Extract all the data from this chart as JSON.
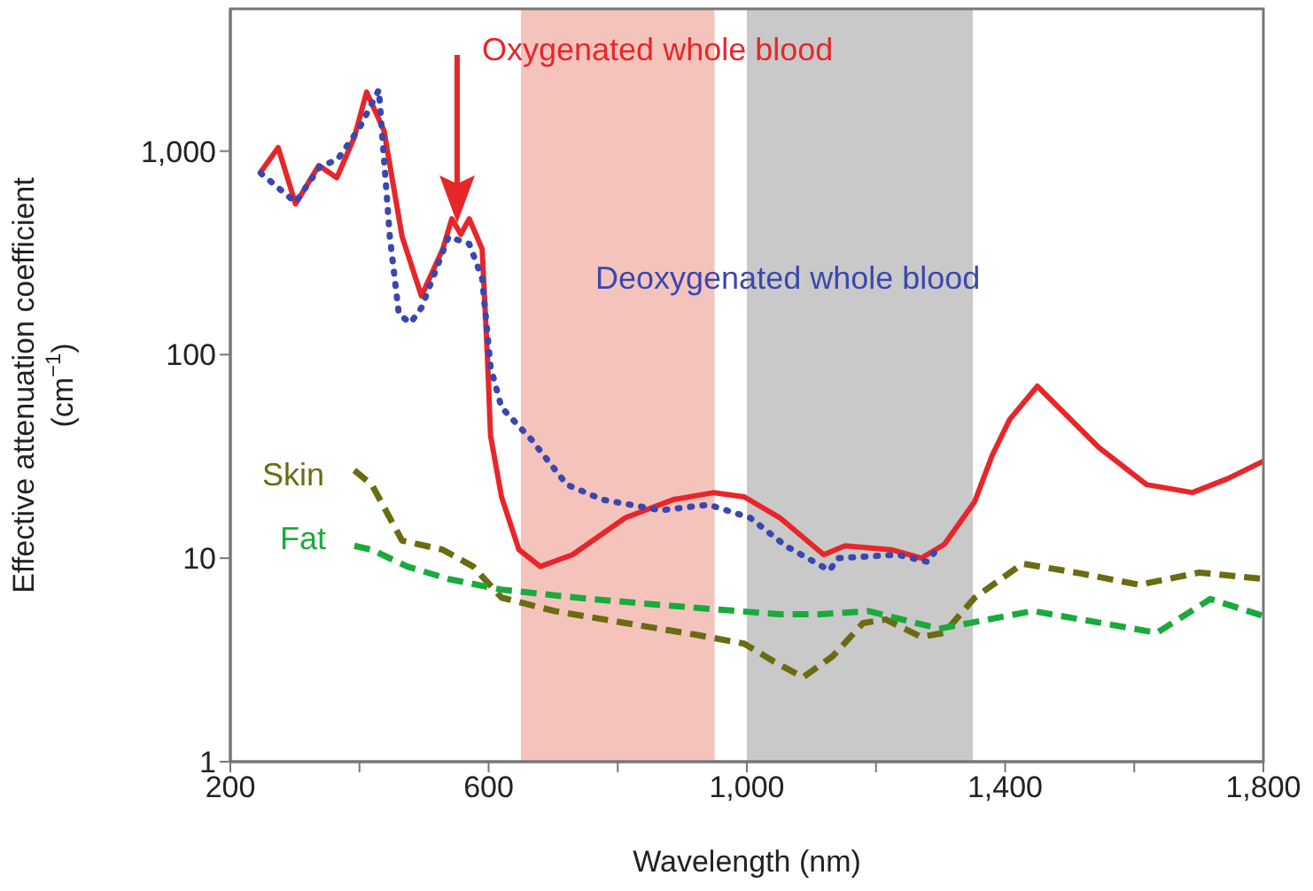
{
  "chart_data": {
    "type": "line",
    "xlabel": "Wavelength (nm)",
    "ylabel": "Effective attenuation coefficient\n(cm$^{−1}$)",
    "log": "y",
    "grid": false,
    "legend": false,
    "xlim": [
      200,
      1800
    ],
    "xticks": [
      200,
      {
        "value": 400,
        "label": null
      },
      600,
      {
        "value": 800,
        "label": null
      },
      {
        "value": 1000,
        "label": "1,000"
      },
      {
        "value": 1200,
        "label": null
      },
      {
        "value": 1400,
        "label": "1,400"
      },
      {
        "value": 1600,
        "label": null
      },
      {
        "value": 1800,
        "label": "1,800"
      }
    ],
    "ylim": [
      1,
      5000
    ],
    "yticks": [
      1,
      10,
      100,
      {
        "value": 1000,
        "label": "1,000"
      }
    ],
    "bands": [
      {
        "axis": "x",
        "from": 650,
        "to": 950,
        "color": "#f4c4bc"
      },
      {
        "axis": "x",
        "from": 1000,
        "to": 1350,
        "color": "#c9c9c9"
      }
    ],
    "series": [
      {
        "name": "Oxygenated whole blood",
        "color": "#e8262a",
        "line_style": "solid",
        "x": [
          247,
          274,
          301,
          337,
          365,
          392,
          411,
          438,
          466,
          496,
          529,
          543,
          557,
          570,
          590,
          598,
          603,
          620,
          647,
          680,
          730,
          812,
          886,
          949,
          996,
          1051,
          1119,
          1152,
          1224,
          1270,
          1306,
          1353,
          1380,
          1407,
          1450,
          1545,
          1619,
          1690,
          1745,
          1800
        ],
        "values": [
          790,
          1040,
          550,
          850,
          740,
          1170,
          1950,
          1260,
          380,
          194,
          330,
          465,
          390,
          465,
          330,
          100,
          40,
          20,
          11,
          9.1,
          10.4,
          15.8,
          19.4,
          21,
          20,
          15.8,
          10.4,
          11.5,
          11,
          10,
          11.7,
          19,
          32,
          48,
          70,
          35,
          23,
          21,
          24.6,
          30
        ]
      },
      {
        "name": "Deoxygenated whole blood",
        "color": "#3a47b0",
        "line_style": "dotted",
        "x": [
          247,
          301,
          340,
          365,
          400,
          430,
          447,
          461,
          479,
          496,
          538,
          570,
          590,
          603,
          620,
          667,
          721,
          776,
          867,
          941,
          1005,
          1060,
          1128,
          1141,
          1233,
          1279,
          1290
        ],
        "values": [
          780,
          560,
          850,
          900,
          1300,
          2000,
          380,
          158,
          143,
          170,
          380,
          350,
          237,
          87,
          55,
          38,
          23,
          19.4,
          17.2,
          18.3,
          15.8,
          11.5,
          8.7,
          10,
          10.4,
          9.6,
          10.6
        ]
      },
      {
        "name": "Skin",
        "color": "#6b6b12",
        "line_style": "dashed",
        "x": [
          392,
          419,
          466,
          529,
          576,
          620,
          702,
          812,
          922,
          996,
          1042,
          1087,
          1133,
          1180,
          1215,
          1270,
          1306,
          1353,
          1427,
          1509,
          1608,
          1701,
          1800
        ],
        "values": [
          27,
          23,
          12.2,
          11,
          9.1,
          6.4,
          5.5,
          4.8,
          4.2,
          3.8,
          3.1,
          2.6,
          3.3,
          4.8,
          5,
          4.1,
          4.3,
          6.4,
          9.4,
          8.5,
          7.4,
          8.5,
          7.9
        ]
      },
      {
        "name": "Fat",
        "color": "#1aaa3c",
        "line_style": "dashed",
        "x": [
          392,
          419,
          474,
          538,
          620,
          757,
          922,
          1051,
          1114,
          1188,
          1298,
          1443,
          1635,
          1718,
          1800
        ],
        "values": [
          11.5,
          11,
          9.1,
          7.9,
          7,
          6.3,
          5.7,
          5.3,
          5.3,
          5.5,
          4.5,
          5.5,
          4.3,
          6.3,
          5.2
        ]
      }
    ]
  }
}
